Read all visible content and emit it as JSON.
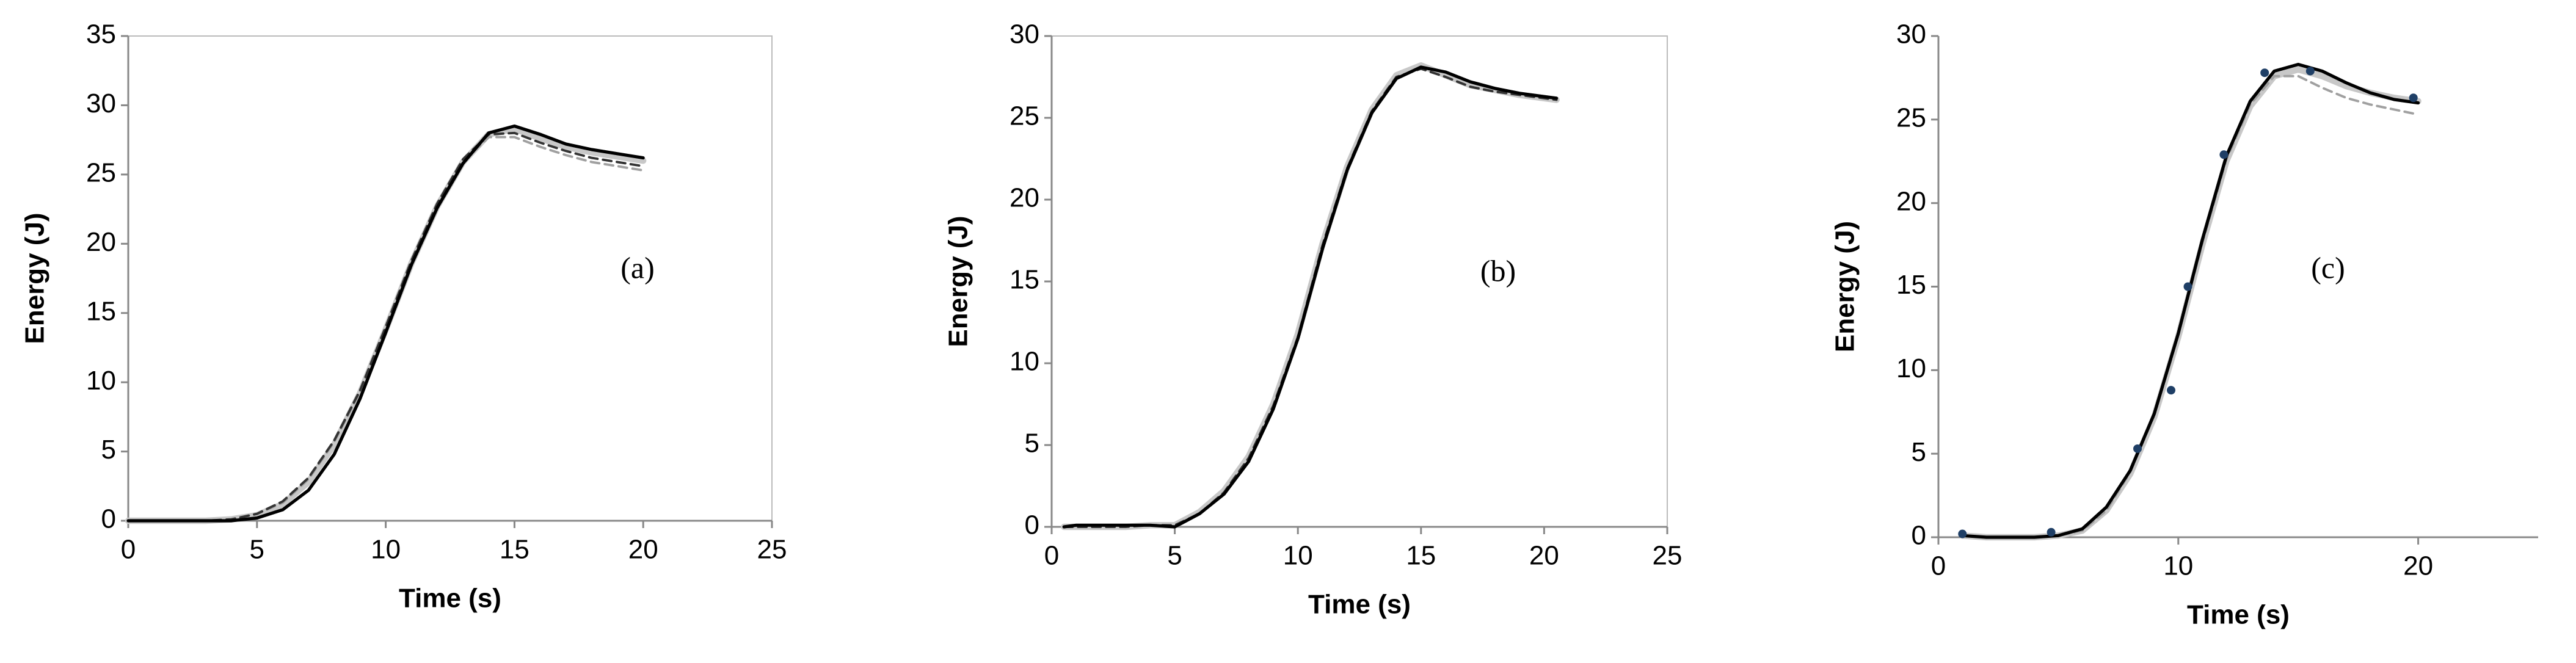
{
  "chart_data": [
    {
      "type": "line",
      "label": "(a)",
      "x_label": "Time (s)",
      "y_label": "Energy (J)",
      "xlim": [
        0,
        25
      ],
      "ylim": [
        0,
        35
      ],
      "xticks": [
        0,
        5,
        10,
        15,
        20,
        25
      ],
      "yticks": [
        0,
        5,
        10,
        15,
        20,
        25,
        30,
        35
      ],
      "frame": true,
      "x": [
        0,
        1,
        2,
        3,
        4,
        5,
        6,
        7,
        8,
        9,
        10,
        11,
        12,
        13,
        14,
        15,
        16,
        17,
        18,
        19,
        20
      ],
      "series": [
        {
          "color": "#c8c8c8",
          "style": "solid",
          "width": 4,
          "values": [
            0,
            0,
            0,
            0,
            0.1,
            0.4,
            1.2,
            2.8,
            5.5,
            9.2,
            13.8,
            18.6,
            22.7,
            25.9,
            27.9,
            28.3,
            27.6,
            27,
            26.6,
            26.3,
            26
          ]
        },
        {
          "color": "#a0a0a0",
          "style": "dashed",
          "width": 1.5,
          "values": [
            0,
            0,
            0,
            0,
            0.1,
            0.5,
            1.3,
            3,
            5.7,
            9.3,
            13.9,
            18.7,
            22.8,
            25.9,
            27.7,
            27.7,
            27,
            26.4,
            25.9,
            25.6,
            25.3
          ]
        },
        {
          "color": "#333333",
          "style": "dashed",
          "width": 1.5,
          "values": [
            0,
            0,
            0,
            0,
            0.1,
            0.5,
            1.4,
            3.1,
            5.8,
            9.4,
            14,
            18.8,
            22.9,
            26.1,
            27.9,
            28,
            27.3,
            26.7,
            26.2,
            25.9,
            25.6
          ]
        },
        {
          "color": "#000000",
          "style": "solid",
          "width": 2,
          "values": [
            0,
            0,
            0,
            0,
            0,
            0.2,
            0.8,
            2.2,
            4.8,
            8.8,
            13.6,
            18.5,
            22.6,
            25.8,
            28,
            28.5,
            27.9,
            27.2,
            26.8,
            26.5,
            26.2
          ]
        }
      ]
    },
    {
      "type": "line",
      "label": "(b)",
      "x_label": "Time (s)",
      "y_label": "Energy (J)",
      "xlim": [
        0,
        25
      ],
      "ylim": [
        0,
        30
      ],
      "xticks": [
        0,
        5,
        10,
        15,
        20,
        25
      ],
      "yticks": [
        0,
        5,
        10,
        15,
        20,
        25,
        30
      ],
      "frame": true,
      "x": [
        0.5,
        1,
        2,
        3,
        4,
        5,
        6,
        7,
        8,
        9,
        10,
        11,
        12,
        13,
        14,
        15,
        16,
        17,
        18,
        19,
        20,
        20.5
      ],
      "series": [
        {
          "color": "#c8c8c8",
          "style": "solid",
          "width": 4,
          "values": [
            0,
            0,
            0,
            0,
            0.1,
            0.1,
            0.9,
            2.2,
            4.3,
            7.5,
            11.8,
            17.3,
            22,
            25.5,
            27.6,
            28.2,
            27.6,
            27,
            26.7,
            26.4,
            26.2,
            26.1
          ]
        },
        {
          "color": "#333333",
          "style": "dashed",
          "width": 1.5,
          "values": [
            0,
            0,
            0,
            0,
            0.1,
            0.1,
            0.8,
            2.1,
            4.2,
            7.4,
            11.6,
            17.2,
            21.9,
            25.4,
            27.5,
            28,
            27.5,
            26.9,
            26.6,
            26.4,
            26.2,
            26.1
          ]
        },
        {
          "color": "#000000",
          "style": "solid",
          "width": 2,
          "values": [
            0,
            0.1,
            0.1,
            0.1,
            0.1,
            0,
            0.8,
            2,
            4,
            7.2,
            11.5,
            17,
            21.8,
            25.3,
            27.4,
            28.1,
            27.8,
            27.2,
            26.8,
            26.5,
            26.3,
            26.2
          ]
        }
      ]
    },
    {
      "type": "line",
      "label": "(c)",
      "x_label": "Time (s)",
      "y_label": "Energy (J)",
      "xlim": [
        0,
        25
      ],
      "ylim": [
        0,
        30
      ],
      "xticks": [
        0,
        10,
        20
      ],
      "yticks": [
        0,
        5,
        10,
        15,
        20,
        25,
        30
      ],
      "frame": false,
      "x": [
        1,
        2,
        3,
        4,
        5,
        6,
        7,
        8,
        9,
        10,
        11,
        12,
        13,
        14,
        15,
        16,
        17,
        18,
        19,
        20
      ],
      "series": [
        {
          "color": "#c8c8c8",
          "style": "solid",
          "width": 4,
          "values": [
            0.1,
            0,
            0,
            0,
            0.1,
            0.4,
            1.6,
            3.8,
            7.2,
            12,
            17.5,
            22.5,
            25.8,
            27.6,
            28,
            27.6,
            27,
            26.6,
            26.3,
            26.1
          ]
        },
        {
          "color": "#a0a0a0",
          "style": "dashed",
          "width": 1.5,
          "values": [
            0.1,
            0,
            0,
            0,
            0.1,
            0.4,
            1.6,
            3.9,
            7.3,
            12.1,
            17.6,
            22.6,
            25.9,
            27.6,
            27.6,
            26.9,
            26.3,
            25.9,
            25.6,
            25.3
          ]
        },
        {
          "color": "#000000",
          "style": "solid",
          "width": 2,
          "values": [
            0.1,
            0,
            0,
            0,
            0.1,
            0.5,
            1.8,
            4,
            7.4,
            12.2,
            17.8,
            22.8,
            26.1,
            27.9,
            28.3,
            27.9,
            27.2,
            26.6,
            26.2,
            26
          ]
        },
        {
          "color": "#1f3f66",
          "style": "marker",
          "width": 0,
          "x": [
            1,
            4.7,
            8.3,
            9.7,
            10.4,
            11.9,
            13.6,
            15.5,
            19.8
          ],
          "values": [
            0.2,
            0.3,
            5.3,
            8.8,
            15,
            22.9,
            27.8,
            27.9,
            26.3
          ]
        }
      ]
    }
  ]
}
